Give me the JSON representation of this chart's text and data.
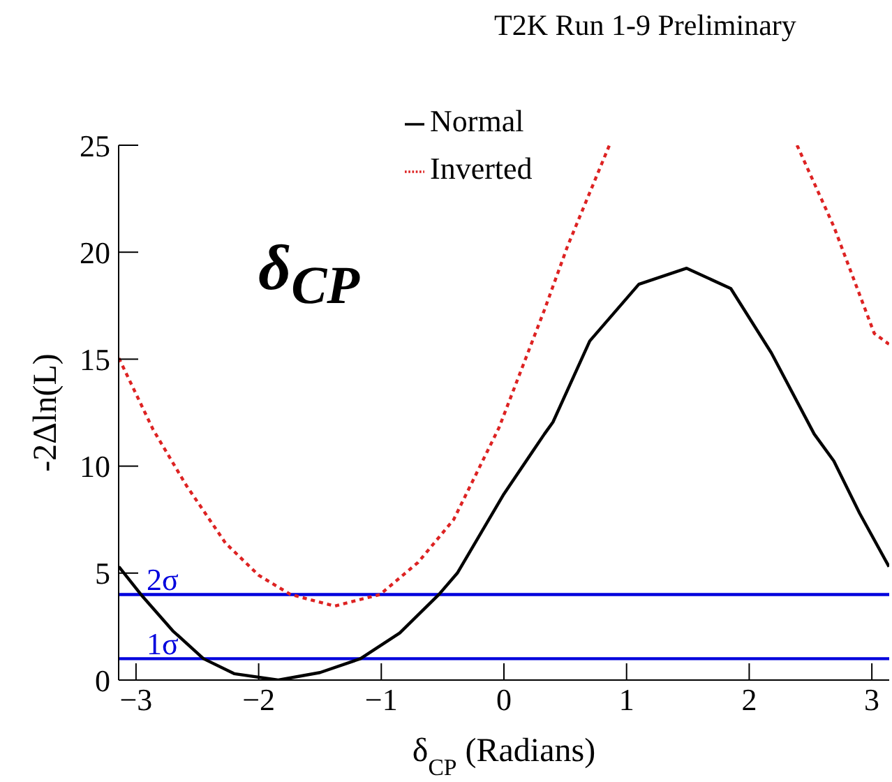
{
  "chart_data": {
    "type": "line",
    "title": "T2K Run 1-9 Preliminary",
    "xlabel": "δ$_{CP}$ (Radians)",
    "ylabel": "-2Δln(L)",
    "annotations": [
      "δ$_{CP}$"
    ],
    "xlim": [
      -3.1416,
      3.1416
    ],
    "xticks": [
      -3,
      -2,
      -1,
      0,
      1,
      2,
      3
    ],
    "ylim": [
      0,
      25
    ],
    "yticks": [
      0,
      5,
      10,
      15,
      20,
      25
    ],
    "grid": false,
    "legend": "top",
    "marker": "none",
    "series": [
      {
        "name": "Normal",
        "color": "#000000",
        "line_style": "solid",
        "x": [
          -3.14,
          -2.96,
          -2.7,
          -2.45,
          -2.2,
          -1.84,
          -1.5,
          -1.17,
          -0.85,
          -0.53,
          -0.38,
          0,
          0.33,
          0.4,
          0.7,
          1.1,
          1.49,
          1.85,
          2.18,
          2.53,
          2.69,
          2.9,
          3.14
        ],
        "values": [
          5.3,
          4.0,
          2.3,
          1.0,
          0.3,
          0,
          0.35,
          1.0,
          2.2,
          4.0,
          5.0,
          8.7,
          11.5,
          12.06,
          15.85,
          18.5,
          19.25,
          18.3,
          15.3,
          11.5,
          10.24,
          7.8,
          5.3
        ]
      },
      {
        "name": "Inverted",
        "color": "#dd2222",
        "line_style": "dotted",
        "x": [
          -3.14,
          -2.86,
          -2.59,
          -2.27,
          -2.0,
          -1.74,
          -1.38,
          -1.01,
          -0.7,
          -0.41,
          -0.04,
          0.33,
          0.52,
          0.86,
          1.6,
          2.39,
          2.69,
          3.02,
          3.14
        ],
        "values": [
          15.05,
          11.7,
          9.1,
          6.4,
          4.9,
          4.0,
          3.46,
          4.0,
          5.5,
          7.5,
          11.8,
          17.3,
          20.3,
          25,
          null,
          25,
          21.2,
          16.2,
          15.7
        ]
      }
    ],
    "ref_lines": [
      {
        "axis": "y",
        "value": 1,
        "label": "1σ",
        "color": "#0000dd"
      },
      {
        "axis": "y",
        "value": 4,
        "label": "2σ",
        "color": "#0000dd"
      }
    ]
  }
}
